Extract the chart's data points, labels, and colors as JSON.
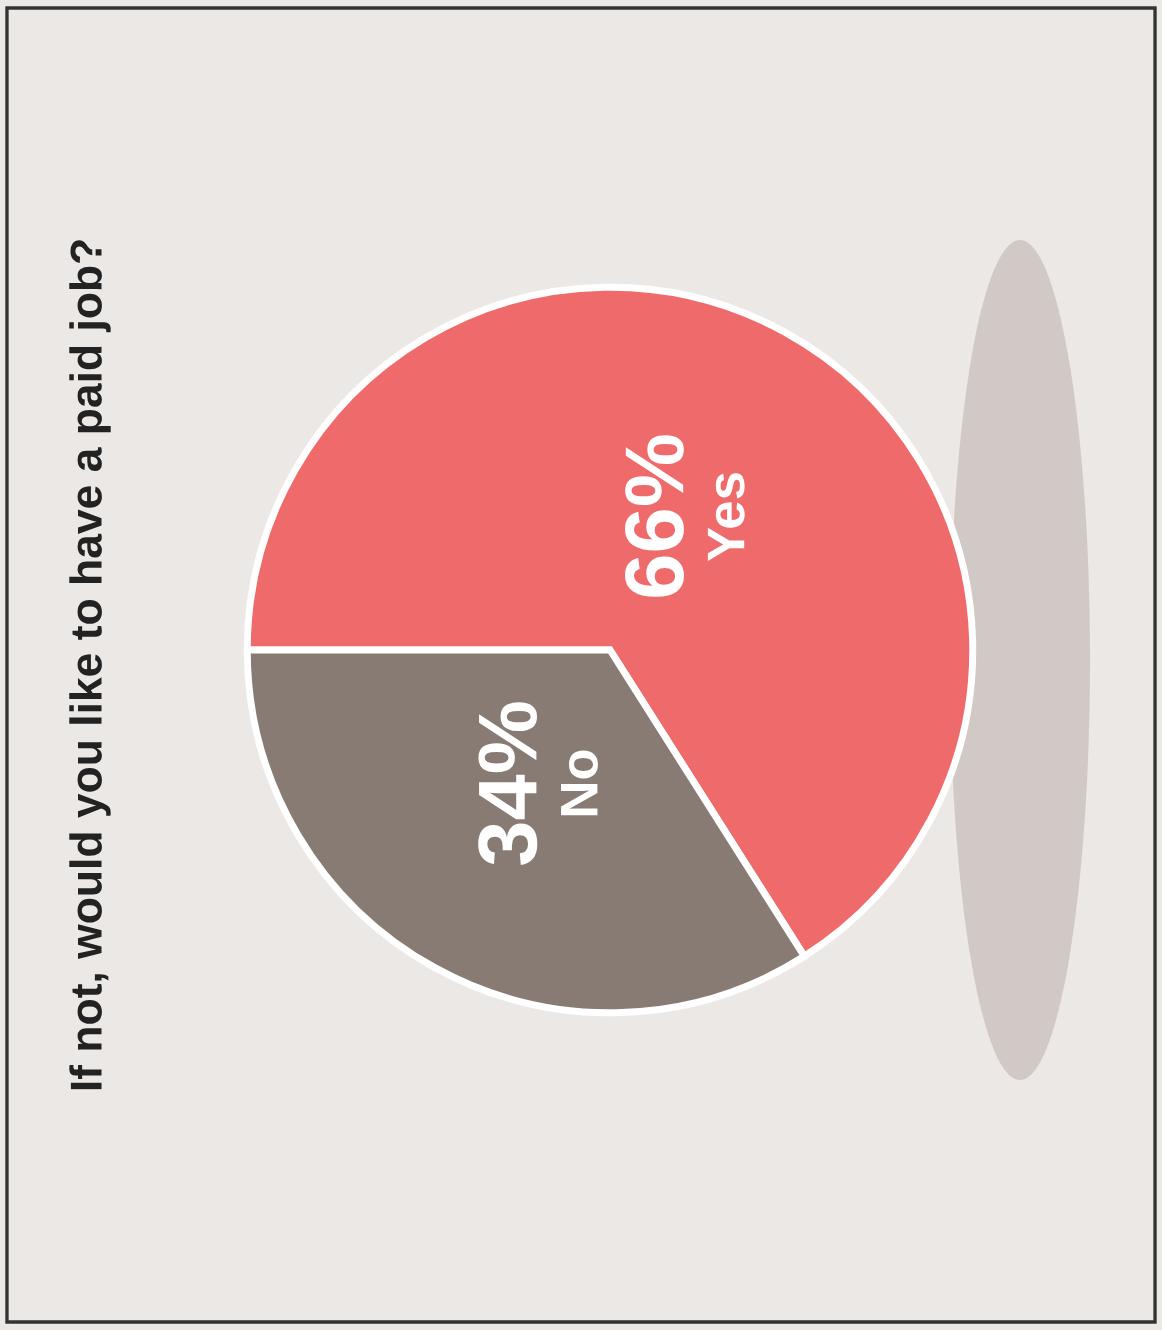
{
  "chart_data": {
    "type": "pie",
    "title": "If not, would you like to have a paid job?",
    "categories": [
      "Yes",
      "No"
    ],
    "values": [
      66,
      34
    ],
    "value_labels": [
      "66%",
      "34%"
    ],
    "colors": [
      "#ef6b6b",
      "#877b74"
    ]
  }
}
